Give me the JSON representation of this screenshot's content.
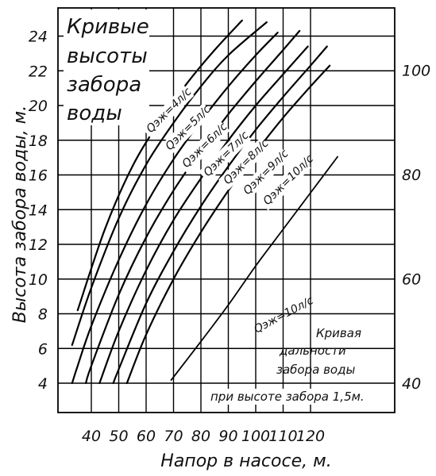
{
  "chart_data": {
    "type": "line",
    "title_lines": [
      "Кривые",
      "высоты",
      "забора",
      "воды"
    ],
    "xlabel": "Напор в насосе, м.",
    "ylabel": "Высота забора воды, м.",
    "xlim": [
      30,
      130
    ],
    "ylim": [
      2,
      26
    ],
    "grid": true,
    "x_ticks": [
      "40",
      "50",
      "60",
      "70",
      "80",
      "90",
      "100",
      "110",
      "120"
    ],
    "y_ticks": [
      "4",
      "6",
      "8",
      "10",
      "12",
      "14",
      "16",
      "18",
      "20",
      "22",
      "24"
    ],
    "series": [
      {
        "name": "Qэж=4л/с",
        "x": [
          35,
          45,
          55,
          65,
          75,
          85,
          95
        ],
        "y": [
          8.2,
          12.9,
          16.5,
          19.1,
          21.3,
          23.2,
          24.9
        ]
      },
      {
        "name": "Qэж=5л/с",
        "x": [
          33,
          40,
          50,
          60,
          70,
          80,
          90,
          104
        ],
        "y": [
          6.2,
          9.5,
          13.5,
          16.6,
          19.0,
          21.1,
          22.9,
          24.8
        ]
      },
      {
        "name": "Qэж=6л/с",
        "x": [
          33,
          35,
          40,
          50,
          60,
          70,
          80,
          90,
          100,
          108
        ],
        "y": [
          4.0,
          5.0,
          7.3,
          11.1,
          14.3,
          16.9,
          19.1,
          21.1,
          22.9,
          24.2
        ]
      },
      {
        "name": "Qэж=7л/с",
        "x": [
          38,
          40,
          50,
          60,
          70,
          80,
          90,
          100,
          110,
          116
        ],
        "y": [
          4.0,
          5.0,
          9.1,
          12.4,
          15.1,
          17.4,
          19.5,
          21.4,
          23.2,
          24.3
        ]
      },
      {
        "name": "Qэж=8л/с",
        "x": [
          43,
          50,
          60,
          70,
          80,
          90,
          100,
          110,
          119
        ],
        "y": [
          4.0,
          7.0,
          10.5,
          13.4,
          15.8,
          18.0,
          20.0,
          21.8,
          23.4
        ]
      },
      {
        "name": "Qэж=9л/с",
        "x": [
          48,
          50,
          60,
          70,
          80,
          90,
          100,
          110,
          120,
          126
        ],
        "y": [
          4.0,
          4.8,
          8.6,
          11.6,
          14.2,
          16.5,
          18.6,
          20.5,
          22.3,
          23.4
        ]
      },
      {
        "name": "Qэж=10л/с",
        "x": [
          53,
          60,
          70,
          80,
          90,
          100,
          110,
          120,
          127
        ],
        "y": [
          4.0,
          6.8,
          10.0,
          12.7,
          15.1,
          17.3,
          19.3,
          21.1,
          22.3
        ]
      }
    ],
    "secondary_axis": {
      "ticks": [
        "40",
        "60",
        "80",
        "100"
      ],
      "range": [
        40,
        100
      ],
      "series": {
        "name": "Qэж=10л/с",
        "x": [
          69,
          80,
          90,
          100,
          110,
          120,
          130
        ],
        "y": [
          40.5,
          48.0,
          55.0,
          62.5,
          69.5,
          76.5,
          83.5
        ]
      },
      "note_lines": [
        "Кривая",
        "дальности",
        "забора воды",
        "при высоте забора 1,5м."
      ]
    }
  }
}
